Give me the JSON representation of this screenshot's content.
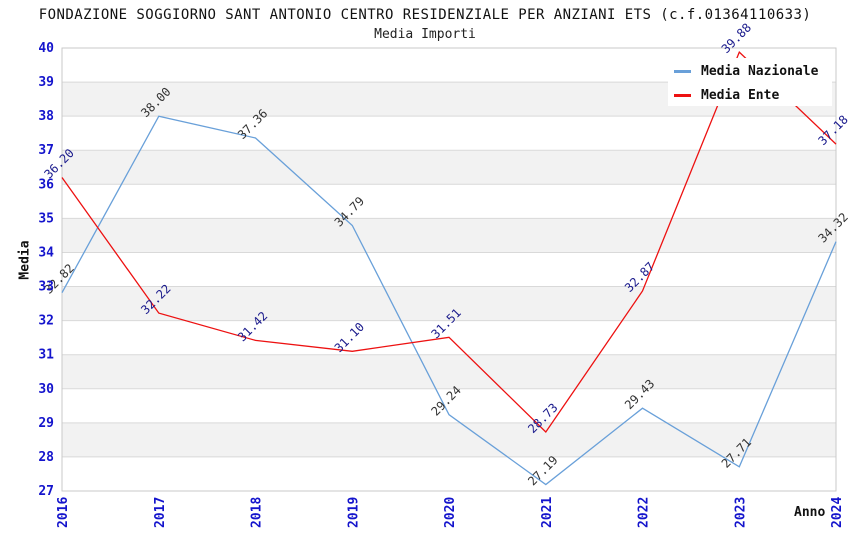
{
  "title": "FONDAZIONE SOGGIORNO SANT ANTONIO CENTRO RESIDENZIALE PER ANZIANI ETS (c.f.01364110633)",
  "subtitle": "Media Importi",
  "chart_data": {
    "type": "line",
    "x": [
      2016,
      2017,
      2018,
      2019,
      2020,
      2021,
      2022,
      2023,
      2024
    ],
    "xlabel": "Anno",
    "ylabel": "Media",
    "ylim": [
      27,
      40
    ],
    "y_tick_step": 1,
    "grid": "horizontal",
    "legend_position": "top-right",
    "background_bands": true,
    "colors": {
      "band_fill": "#f2f2f2",
      "gridline": "#d9d9d9",
      "plot_border": "#c9c9c9",
      "axis_tick_labels": "#1414cc"
    },
    "series": [
      {
        "name": "Media Nazionale",
        "color": "#69a0d9",
        "label_color": "#333333",
        "values": [
          32.82,
          38.0,
          37.36,
          34.79,
          29.24,
          27.19,
          29.43,
          27.71,
          34.32
        ]
      },
      {
        "name": "Media Ente",
        "color": "#ed1111",
        "label_color": "#1a1a8c",
        "values": [
          36.2,
          32.22,
          31.42,
          31.1,
          31.51,
          28.73,
          32.87,
          39.88,
          37.18
        ]
      }
    ]
  }
}
